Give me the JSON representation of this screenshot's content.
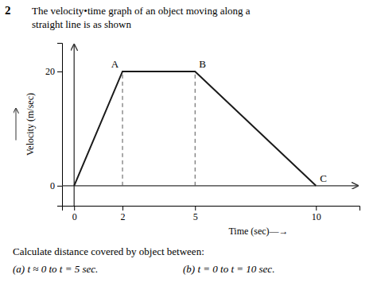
{
  "chart_data": {
    "type": "line",
    "title": "The velocity•time graph of an object moving along a",
    "subtitle": "straight line is as shown",
    "x_label": "Time (sec)—→",
    "y_label": "Velocity (m/sec)",
    "x": [
      0,
      2,
      5,
      10
    ],
    "series": [
      {
        "name": "Velocity",
        "color": "#1a1a1a",
        "values": [
          0,
          20,
          20,
          0
        ]
      }
    ],
    "drop_lines": {
      "x": [
        2,
        5
      ],
      "y": [
        20,
        20
      ],
      "color": "#555555",
      "line_style": "dashed"
    },
    "xlim": [
      -0.5,
      11.8
    ],
    "xticks": [
      0,
      2,
      5,
      10
    ],
    "ylim": [
      -3.5,
      25
    ],
    "yticks": [
      0,
      20
    ],
    "grid": false,
    "annotations": [
      "2",
      "A",
      "B",
      "C",
      "Calculate distance covered by object between:",
      "(a)  t ≈ 0 to t = 5 sec.",
      "(b)  t = 0 to t = 10 sec."
    ]
  }
}
